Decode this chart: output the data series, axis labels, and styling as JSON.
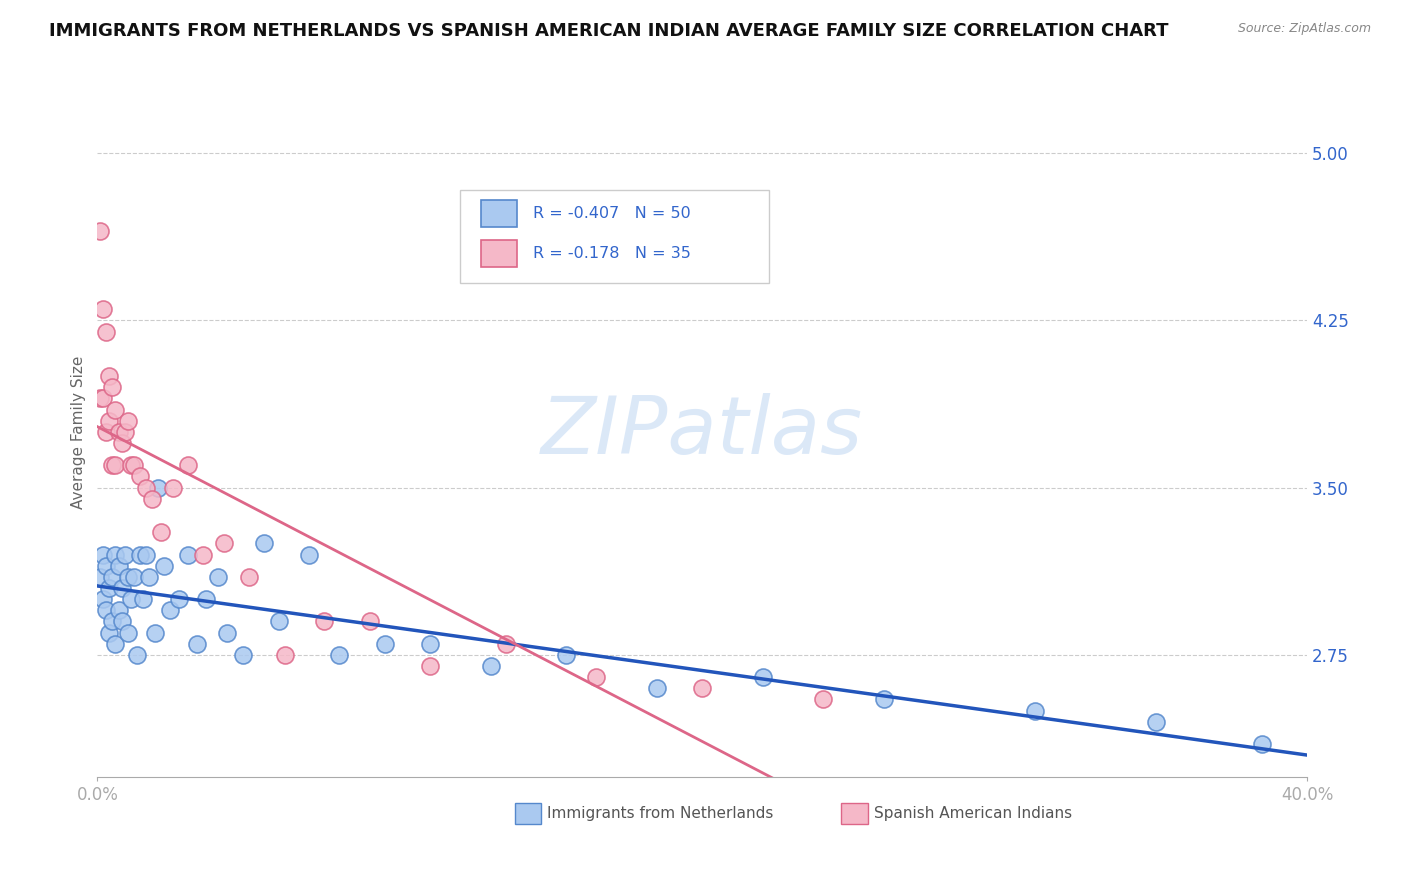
{
  "title": "IMMIGRANTS FROM NETHERLANDS VS SPANISH AMERICAN INDIAN AVERAGE FAMILY SIZE CORRELATION CHART",
  "source": "Source: ZipAtlas.com",
  "ylabel": "Average Family Size",
  "xlim": [
    0.0,
    0.4
  ],
  "ylim": [
    2.2,
    5.3
  ],
  "yticks": [
    2.75,
    3.5,
    4.25,
    5.0
  ],
  "background_color": "#ffffff",
  "grid_color": "#cccccc",
  "blue_dots": {
    "label": "Immigrants from Netherlands",
    "color": "#aac9f0",
    "edge_color": "#5588cc",
    "trend_color": "#2255bb",
    "R": -0.407,
    "N": 50,
    "x": [
      0.001,
      0.002,
      0.002,
      0.003,
      0.003,
      0.004,
      0.004,
      0.005,
      0.005,
      0.006,
      0.006,
      0.007,
      0.007,
      0.008,
      0.008,
      0.009,
      0.01,
      0.01,
      0.011,
      0.012,
      0.013,
      0.014,
      0.015,
      0.016,
      0.017,
      0.019,
      0.02,
      0.022,
      0.024,
      0.027,
      0.03,
      0.033,
      0.036,
      0.04,
      0.043,
      0.048,
      0.055,
      0.06,
      0.07,
      0.08,
      0.095,
      0.11,
      0.13,
      0.155,
      0.185,
      0.22,
      0.26,
      0.31,
      0.35,
      0.385
    ],
    "y": [
      3.1,
      3.2,
      3.0,
      2.95,
      3.15,
      3.05,
      2.85,
      3.1,
      2.9,
      3.2,
      2.8,
      3.15,
      2.95,
      3.05,
      2.9,
      3.2,
      3.1,
      2.85,
      3.0,
      3.1,
      2.75,
      3.2,
      3.0,
      3.2,
      3.1,
      2.85,
      3.5,
      3.15,
      2.95,
      3.0,
      3.2,
      2.8,
      3.0,
      3.1,
      2.85,
      2.75,
      3.25,
      2.9,
      3.2,
      2.75,
      2.8,
      2.8,
      2.7,
      2.75,
      2.6,
      2.65,
      2.55,
      2.5,
      2.45,
      2.35
    ]
  },
  "pink_dots": {
    "label": "Spanish American Indians",
    "color": "#f5b8c8",
    "edge_color": "#dd6688",
    "trend_color": "#dd6688",
    "R": -0.178,
    "N": 35,
    "x": [
      0.001,
      0.001,
      0.002,
      0.002,
      0.003,
      0.003,
      0.004,
      0.004,
      0.005,
      0.005,
      0.006,
      0.006,
      0.007,
      0.008,
      0.009,
      0.01,
      0.011,
      0.012,
      0.014,
      0.016,
      0.018,
      0.021,
      0.025,
      0.03,
      0.035,
      0.042,
      0.05,
      0.062,
      0.075,
      0.09,
      0.11,
      0.135,
      0.165,
      0.2,
      0.24
    ],
    "y": [
      4.65,
      3.9,
      4.3,
      3.9,
      4.2,
      3.75,
      4.0,
      3.8,
      3.95,
      3.6,
      3.85,
      3.6,
      3.75,
      3.7,
      3.75,
      3.8,
      3.6,
      3.6,
      3.55,
      3.5,
      3.45,
      3.3,
      3.5,
      3.6,
      3.2,
      3.25,
      3.1,
      2.75,
      2.9,
      2.9,
      2.7,
      2.8,
      2.65,
      2.6,
      2.55
    ]
  },
  "title_color": "#111111",
  "title_fontsize": 13,
  "axis_label_color": "#3366cc",
  "source_color": "#888888",
  "legend_color": "#3366cc",
  "watermark_color": "#ccdff5",
  "bottom_label_color": "#555555"
}
